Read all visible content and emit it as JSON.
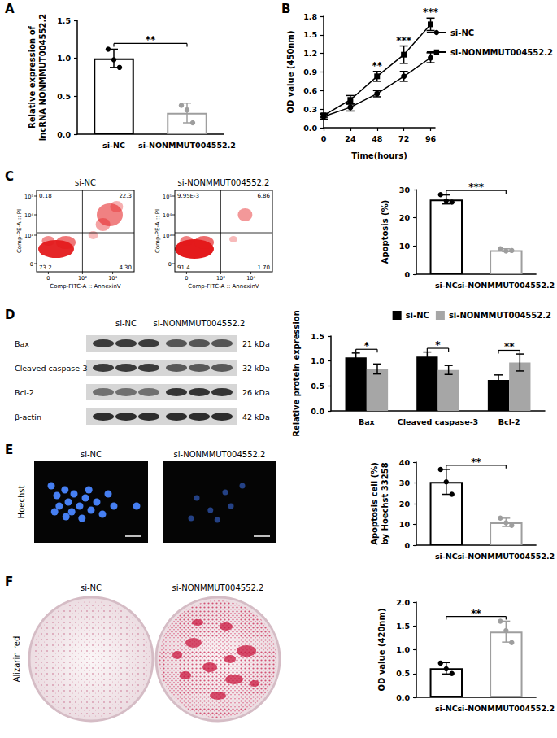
{
  "chart_data": [
    {
      "panel": "A",
      "type": "bar",
      "categories": [
        "si-NC",
        "si-NONMMUT004552.2"
      ],
      "values": [
        1.0,
        0.28
      ],
      "errors": [
        0.12,
        0.13
      ],
      "points": [
        [
          1.12,
          0.98,
          0.88
        ],
        [
          0.38,
          0.32,
          0.15
        ]
      ],
      "colors": [
        "#000000",
        "#9e9e9e"
      ],
      "ylabel": "Relative expression of\nlncRNA NONMMUT004552.2",
      "ylim": [
        0,
        1.5
      ],
      "yticks": [
        {
          "value": 0,
          "label": "0.0"
        },
        0.5,
        {
          "value": 1,
          "label": "1.0"
        },
        1.5
      ],
      "significance": "**"
    },
    {
      "panel": "B",
      "type": "line",
      "x": [
        0,
        24,
        48,
        72,
        96
      ],
      "xlabel": "Time(hours)",
      "ylabel": "OD value (450nm)",
      "xlim": [
        0,
        100
      ],
      "xticks": [
        0,
        24,
        48,
        72,
        96
      ],
      "ylim": [
        0,
        1.8
      ],
      "yticks": [
        {
          "value": 0,
          "label": "0.0"
        },
        0.3,
        0.6,
        0.9,
        1.2,
        1.5,
        1.8
      ],
      "series": [
        {
          "name": "si-NC",
          "color": "#000000",
          "marker": "circle",
          "values": [
            0.18,
            0.33,
            0.55,
            0.83,
            1.13
          ],
          "errors": [
            0.04,
            0.06,
            0.05,
            0.08,
            0.08
          ]
        },
        {
          "name": "si-NONMMUT004552.2",
          "color": "#000000",
          "marker": "square",
          "values": [
            0.2,
            0.45,
            0.83,
            1.18,
            1.67
          ],
          "errors": [
            0.03,
            0.07,
            0.08,
            0.14,
            0.1
          ]
        }
      ],
      "significance": [
        null,
        null,
        "**",
        "***",
        "***"
      ],
      "legend": "right"
    },
    {
      "type": "bar",
      "categories": [
        "si-NC",
        "si-NONMMUT004552.2"
      ],
      "values": [
        26.5,
        8.5
      ],
      "errors": [
        1.6,
        0.5
      ],
      "points": [
        [
          28.2,
          26.0,
          25.5
        ],
        [
          9.0,
          8.2,
          8.4
        ]
      ],
      "colors": [
        "#000000",
        "#9e9e9e"
      ],
      "ylabel": "Apoptosis (%)",
      "ylim": [
        0,
        30
      ],
      "yticks": [
        0,
        10,
        20,
        30
      ],
      "significance": "***"
    },
    {
      "type": "bar",
      "categories": [
        "Bax",
        "Cleaved caspase-3",
        "Bcl-2"
      ],
      "ylabel": "Relative protein expression",
      "ylim": [
        0,
        1.5
      ],
      "yticks": [
        {
          "value": 0,
          "label": "0.0"
        },
        0.5,
        {
          "value": 1,
          "label": "1.0"
        },
        1.5
      ],
      "series": [
        {
          "name": "si-NC",
          "color": "#000000",
          "values": [
            1.07,
            1.09,
            0.62
          ],
          "errors": [
            0.09,
            0.09,
            0.1
          ]
        },
        {
          "name": "si-NONMMUT004552.2",
          "color": "#a6a6a6",
          "values": [
            0.84,
            0.82,
            0.97
          ],
          "errors": [
            0.1,
            0.09,
            0.17
          ]
        }
      ],
      "significance": [
        "*",
        "*",
        "**"
      ],
      "legend": "top-right"
    },
    {
      "type": "bar",
      "categories": [
        "si-NC",
        "si-NONMMUT004552.2"
      ],
      "values": [
        30.5,
        11.0
      ],
      "errors": [
        6.0,
        2.0
      ],
      "points": [
        [
          36.5,
          30.5,
          24.5
        ],
        [
          13.0,
          10.8,
          9.5
        ]
      ],
      "colors": [
        "#000000",
        "#9e9e9e"
      ],
      "ylabel": "Apoptosis cell (%)\nby Hoechst 33258",
      "ylim": [
        0,
        40
      ],
      "yticks": [
        0,
        10,
        20,
        30,
        40
      ],
      "significance": "**"
    },
    {
      "type": "bar",
      "categories": [
        "si-NC",
        "si-NONMMUT004552.2"
      ],
      "values": [
        0.61,
        1.38
      ],
      "errors": [
        0.12,
        0.22
      ],
      "points": [
        [
          0.72,
          0.6,
          0.5
        ],
        [
          1.6,
          1.4,
          1.15
        ]
      ],
      "colors": [
        "#000000",
        "#9e9e9e"
      ],
      "ylabel": "OD value (420nm)",
      "ylim": [
        0,
        2
      ],
      "yticks": [
        {
          "value": 0,
          "label": "0.0"
        },
        0.5,
        {
          "value": 1,
          "label": "1.0"
        },
        1.5,
        {
          "value": 2,
          "label": "2.0"
        }
      ],
      "significance": "**"
    }
  ],
  "flow_cytometry": {
    "panel": "C",
    "xlabel": "Comp-FITC-A :: AnnexinV",
    "ylabel": "Comp-PE-A :: PI",
    "xticks": [
      "0",
      "10³",
      "10⁴"
    ],
    "yticks": [
      "0",
      "10³",
      "10⁴",
      "10⁵"
    ],
    "plots": [
      {
        "title": "si-NC",
        "quadrants": [
          "0.18",
          "22.3",
          "73.2",
          "4.30"
        ]
      },
      {
        "title": "si-NONMMUT004552.2",
        "quadrants": [
          "9.95E-3",
          "6.86",
          "91.4",
          "1.70"
        ]
      }
    ]
  },
  "western_blot": {
    "panel": "D",
    "lanes": [
      "si-NC",
      "si-NONMMUT004552.2"
    ],
    "rows": [
      {
        "protein": "Bax",
        "size": "21 kDa"
      },
      {
        "protein": "Cleaved caspase-3",
        "size": "32 kDa"
      },
      {
        "protein": "Bcl-2",
        "size": "26 kDa"
      },
      {
        "protein": "β-actin",
        "size": "42 kDa"
      }
    ]
  },
  "hoechst": {
    "panel": "E",
    "stain": "Hoechst",
    "images": [
      "si-NC",
      "si-NONMMUT004552.2"
    ]
  },
  "alizarin": {
    "panel": "F",
    "stain": "Alizarin red",
    "images": [
      "si-NC",
      "si-NONMMUT004552.2"
    ]
  }
}
